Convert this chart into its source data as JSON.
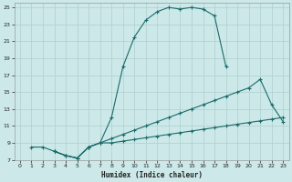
{
  "xlabel": "Humidex (Indice chaleur)",
  "bg_color": "#cce8e8",
  "grid_color": "#b8d8d8",
  "line_color": "#1a6b6b",
  "xlim": [
    -0.5,
    23.5
  ],
  "ylim": [
    7,
    25.5
  ],
  "xticks": [
    0,
    1,
    2,
    3,
    4,
    5,
    6,
    7,
    8,
    9,
    10,
    11,
    12,
    13,
    14,
    15,
    16,
    17,
    18,
    19,
    20,
    21,
    22,
    23
  ],
  "yticks": [
    7,
    9,
    11,
    13,
    15,
    17,
    19,
    21,
    23,
    25
  ],
  "curve1_x": [
    1,
    2,
    3,
    4,
    5,
    6,
    7,
    8,
    9,
    10,
    11,
    12,
    13,
    14,
    15,
    16,
    17,
    18
  ],
  "curve1_y": [
    8.5,
    8.5,
    8.0,
    7.5,
    7.2,
    8.5,
    9.0,
    12.0,
    18.0,
    21.5,
    23.5,
    24.5,
    25.0,
    24.8,
    25.0,
    24.8,
    24.0,
    18.0
  ],
  "curve2_x": [
    3,
    4,
    5,
    6,
    7,
    8,
    9,
    10,
    11,
    12,
    13,
    14,
    15,
    16,
    17,
    18,
    19,
    20,
    21,
    22,
    23
  ],
  "curve2_y": [
    8.0,
    7.5,
    7.2,
    8.5,
    9.0,
    9.5,
    10.0,
    10.5,
    11.0,
    11.5,
    12.0,
    12.5,
    13.0,
    13.5,
    14.0,
    14.5,
    15.0,
    15.5,
    16.5,
    13.5,
    11.5
  ],
  "curve3_x": [
    3,
    4,
    5,
    6,
    7,
    8,
    9,
    10,
    11,
    12,
    13,
    14,
    15,
    16,
    17,
    18,
    19,
    20,
    21,
    22,
    23
  ],
  "curve3_y": [
    8.0,
    7.5,
    7.2,
    8.5,
    9.0,
    9.0,
    9.2,
    9.4,
    9.6,
    9.8,
    10.0,
    10.2,
    10.4,
    10.6,
    10.8,
    11.0,
    11.2,
    11.4,
    11.6,
    11.8,
    12.0
  ]
}
